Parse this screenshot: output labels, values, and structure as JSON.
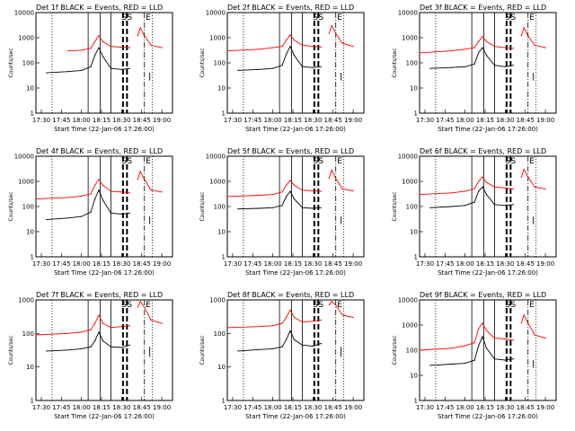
{
  "chart_data": [
    {
      "type": "line",
      "title": "Det 1f BLACK = Events, RED = LLD",
      "xlabel": "Start Time (22-Jan-06 17:26:00)",
      "ylabel": "Counts/sec",
      "y_scale": "log",
      "ylim": [
        1,
        10000
      ],
      "y_ticks": [
        "1",
        "10",
        "100",
        "1000",
        "10000"
      ],
      "xlim": [
        "17:26",
        "19:08"
      ],
      "x_ticks": [
        "17:30",
        "17:45",
        "18:00",
        "18:15",
        "18:30",
        "18:45",
        "19:00"
      ],
      "markers": [
        "S",
        "S",
        "E"
      ],
      "series": [
        {
          "name": "LLD",
          "color": "#ff0000",
          "x": [
            "17:26",
            "17:50",
            "18:00",
            "18:07",
            "18:10",
            "18:13",
            "18:16",
            "18:22",
            "18:30",
            "18:36",
            "18:38",
            "18:40",
            "18:42",
            "18:44",
            "18:47",
            "18:52",
            "19:00"
          ],
          "y": [
            0,
            300,
            320,
            380,
            700,
            1200,
            700,
            450,
            420,
            400,
            0,
            0,
            1200,
            2500,
            1200,
            500,
            400
          ]
        },
        {
          "name": "Events",
          "color": "#000000",
          "x": [
            "17:34",
            "17:50",
            "18:00",
            "18:07",
            "18:10",
            "18:13",
            "18:16",
            "18:22",
            "18:30",
            "18:36"
          ],
          "y": [
            40,
            45,
            50,
            70,
            200,
            400,
            180,
            60,
            55,
            60
          ]
        }
      ]
    },
    {
      "type": "line",
      "title": "Det 2f BLACK = Events, RED = LLD",
      "xlabel": "Start Time (22-Jan-06 17:26:00)",
      "ylabel": "Counts/sec",
      "y_scale": "log",
      "ylim": [
        1,
        10000
      ],
      "y_ticks": [
        "1",
        "10",
        "100",
        "1000",
        "10000"
      ],
      "xlim": [
        "17:26",
        "19:08"
      ],
      "x_ticks": [
        "17:30",
        "17:45",
        "18:00",
        "18:15",
        "18:30",
        "18:45",
        "19:00"
      ],
      "markers": [
        "S",
        "S",
        "E"
      ],
      "series": [
        {
          "name": "LLD",
          "color": "#ff0000",
          "x": [
            "17:26",
            "17:50",
            "18:00",
            "18:07",
            "18:10",
            "18:13",
            "18:16",
            "18:22",
            "18:30",
            "18:36",
            "18:38",
            "18:40",
            "18:42",
            "18:44",
            "18:47",
            "18:52",
            "19:00"
          ],
          "y": [
            300,
            350,
            400,
            450,
            800,
            1300,
            800,
            500,
            450,
            420,
            0,
            0,
            1500,
            3000,
            1500,
            600,
            450
          ]
        },
        {
          "name": "Events",
          "color": "#000000",
          "x": [
            "17:34",
            "17:50",
            "18:00",
            "18:07",
            "18:10",
            "18:13",
            "18:16",
            "18:22",
            "18:30",
            "18:36"
          ],
          "y": [
            50,
            55,
            60,
            80,
            220,
            450,
            200,
            70,
            65,
            70
          ]
        }
      ]
    },
    {
      "type": "line",
      "title": "Det 3f BLACK = Events, RED = LLD",
      "xlabel": "Start Time (22-Jan-06 17:26:00)",
      "ylabel": "Counts/sec",
      "y_scale": "log",
      "ylim": [
        1,
        10000
      ],
      "y_ticks": [
        "1",
        "10",
        "100",
        "1000",
        "10000"
      ],
      "xlim": [
        "17:26",
        "19:08"
      ],
      "x_ticks": [
        "17:30",
        "17:45",
        "18:00",
        "18:15",
        "18:30",
        "18:45",
        "19:00"
      ],
      "markers": [
        "S",
        "S",
        "E"
      ],
      "series": [
        {
          "name": "LLD",
          "color": "#ff0000",
          "x": [
            "17:26",
            "17:50",
            "18:00",
            "18:07",
            "18:10",
            "18:13",
            "18:16",
            "18:22",
            "18:30",
            "18:36",
            "18:38",
            "18:40",
            "18:42",
            "18:44",
            "18:47",
            "18:52",
            "19:00"
          ],
          "y": [
            250,
            300,
            350,
            400,
            700,
            1100,
            700,
            450,
            400,
            380,
            0,
            0,
            1200,
            2500,
            1200,
            500,
            400
          ]
        },
        {
          "name": "Events",
          "color": "#000000",
          "x": [
            "17:34",
            "17:50",
            "18:00",
            "18:07",
            "18:10",
            "18:13",
            "18:16",
            "18:22",
            "18:30",
            "18:36"
          ],
          "y": [
            60,
            65,
            70,
            90,
            250,
            400,
            200,
            80,
            70,
            80
          ]
        }
      ]
    },
    {
      "type": "line",
      "title": "Det 4f BLACK = Events, RED = LLD",
      "xlabel": "Start Time (22-Jan-06 17:26:00)",
      "ylabel": "Counts/sec",
      "y_scale": "log",
      "ylim": [
        1,
        10000
      ],
      "y_ticks": [
        "1",
        "10",
        "100",
        "1000",
        "10000"
      ],
      "xlim": [
        "17:26",
        "19:08"
      ],
      "x_ticks": [
        "17:30",
        "17:45",
        "18:00",
        "18:15",
        "18:30",
        "18:45",
        "19:00"
      ],
      "markers": [
        "S",
        "S",
        "E"
      ],
      "series": [
        {
          "name": "LLD",
          "color": "#ff0000",
          "x": [
            "17:26",
            "17:50",
            "18:00",
            "18:07",
            "18:10",
            "18:13",
            "18:16",
            "18:22",
            "18:30",
            "18:36",
            "18:38",
            "18:40",
            "18:42",
            "18:44",
            "18:47",
            "18:52",
            "19:00"
          ],
          "y": [
            200,
            230,
            260,
            320,
            700,
            1200,
            700,
            400,
            380,
            350,
            0,
            0,
            1200,
            2500,
            1200,
            450,
            380
          ]
        },
        {
          "name": "Events",
          "color": "#000000",
          "x": [
            "17:34",
            "17:50",
            "18:00",
            "18:07",
            "18:10",
            "18:13",
            "18:16",
            "18:22",
            "18:30",
            "18:36"
          ],
          "y": [
            30,
            35,
            40,
            60,
            200,
            450,
            180,
            55,
            50,
            55
          ]
        }
      ]
    },
    {
      "type": "line",
      "title": "Det 5f BLACK = Events, RED = LLD",
      "xlabel": "Start Time (22-Jan-06 17:26:00)",
      "ylabel": "Counts/sec",
      "y_scale": "log",
      "ylim": [
        1,
        10000
      ],
      "y_ticks": [
        "1",
        "10",
        "100",
        "1000",
        "10000"
      ],
      "xlim": [
        "17:26",
        "19:08"
      ],
      "x_ticks": [
        "17:30",
        "17:45",
        "18:00",
        "18:15",
        "18:30",
        "18:45",
        "19:00"
      ],
      "markers": [
        "S",
        "S",
        "E"
      ],
      "series": [
        {
          "name": "LLD",
          "color": "#ff0000",
          "x": [
            "17:26",
            "17:50",
            "18:00",
            "18:07",
            "18:10",
            "18:13",
            "18:16",
            "18:22",
            "18:30",
            "18:36",
            "18:38",
            "18:40",
            "18:42",
            "18:44",
            "18:47",
            "18:52",
            "19:00"
          ],
          "y": [
            250,
            280,
            300,
            380,
            700,
            1100,
            700,
            450,
            420,
            400,
            0,
            0,
            1300,
            2800,
            1300,
            500,
            420
          ]
        },
        {
          "name": "Events",
          "color": "#000000",
          "x": [
            "17:34",
            "17:50",
            "18:00",
            "18:07",
            "18:10",
            "18:13",
            "18:16",
            "18:22",
            "18:30",
            "18:36"
          ],
          "y": [
            80,
            85,
            90,
            110,
            250,
            400,
            200,
            90,
            85,
            90
          ]
        }
      ]
    },
    {
      "type": "line",
      "title": "Det 6f BLACK = Events, RED = LLD",
      "xlabel": "Start Time (22-Jan-06 17:26:00)",
      "ylabel": "Counts/sec",
      "y_scale": "log",
      "ylim": [
        1,
        10000
      ],
      "y_ticks": [
        "1",
        "10",
        "100",
        "1000",
        "10000"
      ],
      "xlim": [
        "17:26",
        "19:08"
      ],
      "x_ticks": [
        "17:30",
        "17:45",
        "18:00",
        "18:15",
        "18:30",
        "18:45",
        "19:00"
      ],
      "markers": [
        "S",
        "S",
        "E"
      ],
      "series": [
        {
          "name": "LLD",
          "color": "#ff0000",
          "x": [
            "17:26",
            "17:50",
            "18:00",
            "18:07",
            "18:10",
            "18:13",
            "18:16",
            "18:22",
            "18:30",
            "18:36",
            "18:38",
            "18:40",
            "18:42",
            "18:44",
            "18:47",
            "18:52",
            "19:00"
          ],
          "y": [
            300,
            350,
            400,
            500,
            1000,
            1500,
            900,
            600,
            550,
            500,
            0,
            0,
            1500,
            3000,
            1500,
            600,
            500
          ]
        },
        {
          "name": "Events",
          "color": "#000000",
          "x": [
            "17:34",
            "17:50",
            "18:00",
            "18:07",
            "18:10",
            "18:13",
            "18:16",
            "18:22",
            "18:30",
            "18:36"
          ],
          "y": [
            90,
            100,
            110,
            150,
            400,
            600,
            300,
            120,
            110,
            120
          ]
        }
      ]
    },
    {
      "type": "line",
      "title": "Det 7f BLACK = Events, RED = LLD",
      "xlabel": "Start Time (22-Jan-06 17:26:00)",
      "ylabel": "Counts/sec",
      "y_scale": "log",
      "ylim": [
        1,
        1000
      ],
      "y_ticks": [
        "1",
        "10",
        "100",
        "1000"
      ],
      "xlim": [
        "17:26",
        "19:08"
      ],
      "x_ticks": [
        "17:30",
        "17:45",
        "18:00",
        "18:15",
        "18:30",
        "18:45",
        "19:00"
      ],
      "markers": [
        "S",
        "S",
        "E"
      ],
      "series": [
        {
          "name": "LLD",
          "color": "#ff0000",
          "x": [
            "17:26",
            "17:50",
            "18:00",
            "18:07",
            "18:10",
            "18:13",
            "18:16",
            "18:22",
            "18:30",
            "18:36",
            "18:38",
            "18:40",
            "18:42",
            "18:44",
            "18:47",
            "18:52",
            "19:00"
          ],
          "y": [
            90,
            100,
            110,
            130,
            200,
            350,
            200,
            150,
            160,
            170,
            0,
            0,
            600,
            900,
            600,
            250,
            200
          ]
        },
        {
          "name": "Events",
          "color": "#000000",
          "x": [
            "17:34",
            "17:50",
            "18:00",
            "18:07",
            "18:10",
            "18:13",
            "18:16",
            "18:22",
            "18:30",
            "18:36"
          ],
          "y": [
            30,
            32,
            35,
            40,
            60,
            110,
            60,
            40,
            38,
            45
          ]
        }
      ]
    },
    {
      "type": "line",
      "title": "Det 8f BLACK = Events, RED = LLD",
      "xlabel": "Start Time (22-Jan-06 17:26:00)",
      "ylabel": "Counts/sec",
      "y_scale": "log",
      "ylim": [
        1,
        1000
      ],
      "y_ticks": [
        "1",
        "10",
        "100",
        "1000"
      ],
      "xlim": [
        "17:26",
        "19:08"
      ],
      "x_ticks": [
        "17:30",
        "17:45",
        "18:00",
        "18:15",
        "18:30",
        "18:45",
        "19:00"
      ],
      "markers": [
        "S",
        "S",
        "E"
      ],
      "series": [
        {
          "name": "LLD",
          "color": "#ff0000",
          "x": [
            "17:26",
            "17:50",
            "18:00",
            "18:07",
            "18:10",
            "18:13",
            "18:16",
            "18:22",
            "18:30",
            "18:36",
            "18:38",
            "18:40",
            "18:42",
            "18:44",
            "18:47",
            "18:52",
            "19:00"
          ],
          "y": [
            150,
            160,
            170,
            200,
            300,
            500,
            300,
            220,
            230,
            250,
            0,
            0,
            700,
            900,
            700,
            350,
            300
          ]
        },
        {
          "name": "Events",
          "color": "#000000",
          "x": [
            "17:34",
            "17:50",
            "18:00",
            "18:07",
            "18:10",
            "18:13",
            "18:16",
            "18:22",
            "18:30",
            "18:36"
          ],
          "y": [
            30,
            33,
            35,
            40,
            65,
            120,
            65,
            45,
            42,
            50
          ]
        }
      ]
    },
    {
      "type": "line",
      "title": "Det 9f BLACK = Events, RED = LLD",
      "xlabel": "Start Time (22-Jan-06 17:26:00)",
      "ylabel": "Counts/sec",
      "y_scale": "log",
      "ylim": [
        1,
        10000
      ],
      "y_ticks": [
        "1",
        "10",
        "100",
        "1000",
        "10000"
      ],
      "xlim": [
        "17:26",
        "19:08"
      ],
      "x_ticks": [
        "17:30",
        "17:45",
        "18:00",
        "18:15",
        "18:30",
        "18:45",
        "19:00"
      ],
      "markers": [
        "S",
        "S",
        "E"
      ],
      "series": [
        {
          "name": "LLD",
          "color": "#ff0000",
          "x": [
            "17:26",
            "17:50",
            "18:00",
            "18:07",
            "18:10",
            "18:13",
            "18:16",
            "18:22",
            "18:30",
            "18:36",
            "18:38",
            "18:40",
            "18:42",
            "18:44",
            "18:47",
            "18:52",
            "19:00"
          ],
          "y": [
            100,
            120,
            150,
            200,
            700,
            1200,
            600,
            300,
            280,
            250,
            0,
            0,
            1200,
            2500,
            1200,
            400,
            300
          ]
        },
        {
          "name": "Events",
          "color": "#000000",
          "x": [
            "17:34",
            "17:50",
            "18:00",
            "18:07",
            "18:10",
            "18:13",
            "18:16",
            "18:22",
            "18:30",
            "18:36"
          ],
          "y": [
            25,
            28,
            30,
            40,
            150,
            350,
            120,
            45,
            40,
            45
          ]
        }
      ]
    }
  ]
}
